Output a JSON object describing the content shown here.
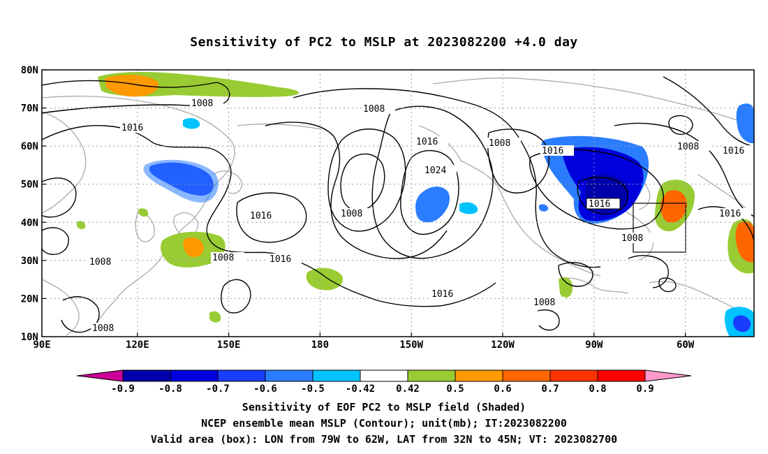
{
  "title": "Sensitivity of PC2 to MSLP at 2023082200 +4.0 day",
  "map": {
    "lat_ticks": [
      "80N",
      "70N",
      "60N",
      "50N",
      "40N",
      "30N",
      "20N",
      "10N"
    ],
    "lon_ticks": [
      "90E",
      "120E",
      "150E",
      "180",
      "150W",
      "120W",
      "90W",
      "60W"
    ],
    "extent": {
      "lon": [
        "90E",
        "45W"
      ],
      "lat": [
        "10N",
        "80N"
      ]
    },
    "grid": "dotted",
    "contour_labels": [
      {
        "id": "c1",
        "text": "1008"
      },
      {
        "id": "c2",
        "text": "1016"
      },
      {
        "id": "c3",
        "text": "1008"
      },
      {
        "id": "c4",
        "text": "1016"
      },
      {
        "id": "c5",
        "text": "1024"
      },
      {
        "id": "c6",
        "text": "1008"
      },
      {
        "id": "c7",
        "text": "1008"
      },
      {
        "id": "c8",
        "text": "1016"
      },
      {
        "id": "c9",
        "text": "1008"
      },
      {
        "id": "c10",
        "text": "1016"
      },
      {
        "id": "c11",
        "text": "1008"
      },
      {
        "id": "c12",
        "text": "1016"
      },
      {
        "id": "c13",
        "text": "1008"
      },
      {
        "id": "c14",
        "text": "1016"
      },
      {
        "id": "c15",
        "text": "1016"
      },
      {
        "id": "c16",
        "text": "1008"
      },
      {
        "id": "c17",
        "text": "1016"
      },
      {
        "id": "c18",
        "text": "1008"
      },
      {
        "id": "c19",
        "text": "1016"
      }
    ],
    "valid_box": {
      "lon": [
        "79W",
        "62W"
      ],
      "lat": [
        "32N",
        "45N"
      ]
    }
  },
  "colorbar": {
    "labels": [
      "-0.9",
      "-0.8",
      "-0.7",
      "-0.6",
      "-0.5",
      "-0.42",
      "0.42",
      "0.5",
      "0.6",
      "0.7",
      "0.8",
      "0.9"
    ],
    "colors": [
      "#cc0099",
      "#0000aa",
      "#0000dd",
      "#1a3cff",
      "#2a7dff",
      "#00c2ff",
      "#ffffff",
      "#99cc33",
      "#ff9900",
      "#ff6600",
      "#ff3300",
      "#ff0000",
      "#ff99cc"
    ]
  },
  "captions": {
    "line1": "Sensitivity of EOF PC2 to MSLP field (Shaded)",
    "line2": "NCEP ensemble mean MSLP (Contour); unit(mb); IT:2023082200",
    "line3": "Valid area (box): LON from 79W to 62W, LAT from 32N to 45N; VT: 2023082700"
  }
}
